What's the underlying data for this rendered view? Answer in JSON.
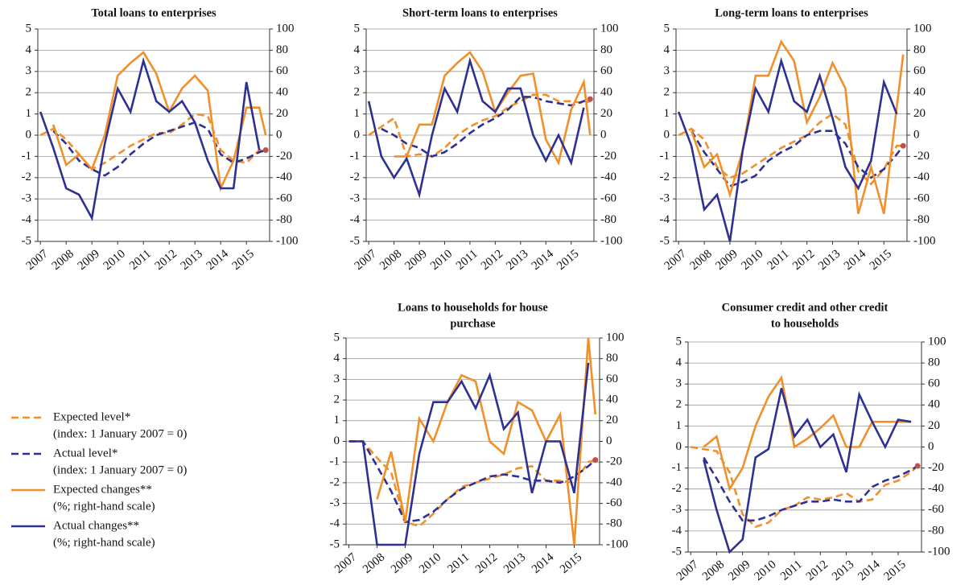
{
  "chart_data": [
    {
      "type": "line",
      "title": [
        "Total loans to enterprises"
      ],
      "x": [
        2007,
        2007.5,
        2008,
        2008.5,
        2009,
        2009.5,
        2010,
        2010.5,
        2011,
        2011.5,
        2012,
        2012.5,
        2013,
        2013.5,
        2014,
        2014.5,
        2015,
        2015.5,
        2015.75
      ],
      "xlim": [
        2006.9,
        2015.9
      ],
      "xticks": [
        2007,
        2008,
        2009,
        2010,
        2011,
        2012,
        2013,
        2014,
        2015
      ],
      "ylim": [
        -5,
        5
      ],
      "yticks": [
        -5,
        -4,
        -3,
        -2,
        -1,
        0,
        1,
        2,
        3,
        4,
        5
      ],
      "y2lim": [
        -100,
        100
      ],
      "y2ticks": [
        -100,
        -80,
        -60,
        -40,
        -20,
        0,
        20,
        40,
        60,
        80,
        100
      ],
      "grid": true,
      "series": [
        {
          "color": "#f0902a",
          "dash": true,
          "values": [
            0,
            0.3,
            -0.2,
            -0.9,
            -1.6,
            -1.3,
            -0.9,
            -0.5,
            -0.2,
            0.1,
            0.1,
            0.5,
            1.0,
            0.9,
            -0.7,
            -1.2,
            -1.3,
            -0.7,
            -0.7
          ]
        },
        {
          "color": "#2e3192",
          "dash": true,
          "end_marker": "#c0504d",
          "values": [
            null,
            0.2,
            -0.4,
            -1.2,
            -1.6,
            -1.9,
            -1.5,
            -0.9,
            -0.4,
            0,
            0.2,
            0.4,
            0.6,
            0.3,
            -0.9,
            -1.3,
            -1.1,
            -0.8,
            -0.7
          ]
        },
        {
          "color": "#f0902a",
          "axis": "y2",
          "values": [
            null,
            10,
            -28,
            -18,
            -32,
            0,
            56,
            68,
            78,
            58,
            22,
            44,
            56,
            42,
            -50,
            -24,
            26,
            26,
            0
          ]
        },
        {
          "color": "#2e3192",
          "axis": "y2",
          "values": [
            22,
            -12,
            -50,
            -56,
            -78,
            -8,
            44,
            22,
            70,
            32,
            22,
            32,
            12,
            -24,
            -50,
            -50,
            50,
            -14,
            null
          ]
        }
      ]
    },
    {
      "type": "line",
      "title": [
        "Short-term loans to enterprises"
      ],
      "x": [
        2007,
        2007.5,
        2008,
        2008.5,
        2009,
        2009.5,
        2010,
        2010.5,
        2011,
        2011.5,
        2012,
        2012.5,
        2013,
        2013.5,
        2014,
        2014.5,
        2015,
        2015.5,
        2015.75
      ],
      "xlim": [
        2006.9,
        2015.9
      ],
      "xticks": [
        2007,
        2008,
        2009,
        2010,
        2011,
        2012,
        2013,
        2014,
        2015
      ],
      "ylim": [
        -5,
        5
      ],
      "yticks": [
        -5,
        -4,
        -3,
        -2,
        -1,
        0,
        1,
        2,
        3,
        4,
        5
      ],
      "y2lim": [
        -100,
        100
      ],
      "y2ticks": [
        -100,
        -80,
        -60,
        -40,
        -20,
        0,
        20,
        40,
        60,
        80,
        100
      ],
      "grid": true,
      "series": [
        {
          "color": "#f0902a",
          "dash": true,
          "values": [
            0,
            0.4,
            0.8,
            -1.0,
            -0.9,
            -1.0,
            -0.6,
            0,
            0.4,
            0.7,
            0.9,
            1.3,
            1.6,
            1.9,
            1.9,
            1.6,
            1.6,
            1.5,
            1.6
          ]
        },
        {
          "color": "#2e3192",
          "dash": true,
          "end_marker": "#c0504d",
          "values": [
            null,
            0.3,
            0,
            -0.4,
            -0.6,
            -1.0,
            -0.8,
            -0.4,
            0.1,
            0.5,
            0.8,
            1.2,
            1.8,
            1.8,
            1.6,
            1.5,
            1.4,
            1.6,
            1.7
          ]
        },
        {
          "color": "#f0902a",
          "axis": "y2",
          "values": [
            null,
            null,
            -20,
            -20,
            10,
            10,
            56,
            68,
            78,
            60,
            22,
            40,
            56,
            58,
            -4,
            -26,
            24,
            50,
            0
          ]
        },
        {
          "color": "#2e3192",
          "axis": "y2",
          "values": [
            32,
            -20,
            -40,
            -22,
            -56,
            0,
            44,
            22,
            70,
            32,
            22,
            44,
            44,
            0,
            -24,
            0,
            -26,
            26,
            null
          ]
        }
      ]
    },
    {
      "type": "line",
      "title": [
        "Long-term loans to enterprises"
      ],
      "x": [
        2007,
        2007.5,
        2008,
        2008.5,
        2009,
        2009.5,
        2010,
        2010.5,
        2011,
        2011.5,
        2012,
        2012.5,
        2013,
        2013.5,
        2014,
        2014.5,
        2015,
        2015.5,
        2015.75
      ],
      "xlim": [
        2006.9,
        2015.9
      ],
      "xticks": [
        2007,
        2008,
        2009,
        2010,
        2011,
        2012,
        2013,
        2014,
        2015
      ],
      "ylim": [
        -5,
        5
      ],
      "yticks": [
        -5,
        -4,
        -3,
        -2,
        -1,
        0,
        1,
        2,
        3,
        4,
        5
      ],
      "y2lim": [
        -100,
        100
      ],
      "y2ticks": [
        -100,
        -80,
        -60,
        -40,
        -20,
        0,
        20,
        40,
        60,
        80,
        100
      ],
      "grid": true,
      "series": [
        {
          "color": "#f0902a",
          "dash": true,
          "values": [
            0,
            0.3,
            -0.2,
            -1.5,
            -2.0,
            -1.8,
            -1.4,
            -1.0,
            -0.6,
            -0.3,
            0,
            0.6,
            1.0,
            0.5,
            -1.7,
            -2.3,
            -1.6,
            -0.5,
            -0.5
          ]
        },
        {
          "color": "#2e3192",
          "dash": true,
          "end_marker": "#c0504d",
          "values": [
            null,
            0.2,
            -0.8,
            -1.6,
            -2.4,
            -2.2,
            -1.9,
            -1.2,
            -0.8,
            -0.5,
            0,
            0.2,
            0.2,
            -0.4,
            -1.5,
            -2.0,
            -1.6,
            -0.9,
            -0.5
          ]
        },
        {
          "color": "#f0902a",
          "axis": "y2",
          "values": [
            null,
            4,
            -30,
            -18,
            -56,
            -14,
            56,
            56,
            88,
            70,
            12,
            36,
            68,
            44,
            -74,
            -30,
            -74,
            26,
            76
          ]
        },
        {
          "color": "#2e3192",
          "axis": "y2",
          "values": [
            22,
            -10,
            -70,
            -56,
            -100,
            -14,
            44,
            22,
            70,
            32,
            22,
            56,
            16,
            -30,
            -50,
            -24,
            50,
            20,
            null
          ]
        }
      ]
    },
    {
      "type": "line",
      "title": [
        "Loans to households for house",
        "purchase"
      ],
      "x": [
        2007,
        2007.5,
        2008,
        2008.5,
        2009,
        2009.5,
        2010,
        2010.5,
        2011,
        2011.5,
        2012,
        2012.5,
        2013,
        2013.5,
        2014,
        2014.5,
        2015,
        2015.5,
        2015.75
      ],
      "xlim": [
        2006.9,
        2015.9
      ],
      "xticks": [
        2007,
        2008,
        2009,
        2010,
        2011,
        2012,
        2013,
        2014,
        2015
      ],
      "ylim": [
        -5,
        5
      ],
      "yticks": [
        -5,
        -4,
        -3,
        -2,
        -1,
        0,
        1,
        2,
        3,
        4,
        5
      ],
      "y2lim": [
        -100,
        100
      ],
      "y2ticks": [
        -100,
        -80,
        -60,
        -40,
        -20,
        0,
        20,
        40,
        60,
        80,
        100
      ],
      "grid": true,
      "series": [
        {
          "color": "#f0902a",
          "dash": true,
          "values": [
            0,
            0,
            -0.8,
            -1.5,
            -3.9,
            -4.1,
            -3.5,
            -2.8,
            -2.2,
            -2.0,
            -1.8,
            -1.6,
            -1.3,
            -1.2,
            -1.9,
            -1.9,
            -2.0,
            -1.0,
            -0.9
          ]
        },
        {
          "color": "#2e3192",
          "dash": true,
          "end_marker": "#c0504d",
          "values": [
            0,
            0,
            -1.2,
            -2.4,
            -3.9,
            -3.8,
            -3.4,
            -2.8,
            -2.3,
            -2.0,
            -1.7,
            -1.6,
            -1.7,
            -1.9,
            -1.9,
            -2.0,
            -1.7,
            -1.2,
            -0.9
          ]
        },
        {
          "color": "#f0902a",
          "axis": "y2",
          "values": [
            null,
            null,
            -56,
            -10,
            -78,
            22,
            0,
            38,
            64,
            58,
            0,
            -12,
            38,
            30,
            0,
            26,
            -100,
            100,
            26
          ]
        },
        {
          "color": "#2e3192",
          "axis": "y2",
          "values": [
            0,
            0,
            -100,
            -100,
            -100,
            -12,
            38,
            38,
            58,
            32,
            64,
            12,
            28,
            -50,
            0,
            0,
            -50,
            76,
            null
          ]
        }
      ]
    },
    {
      "type": "line",
      "title": [
        "Consumer credit and other credit",
        "to households"
      ],
      "x": [
        2007,
        2007.5,
        2008,
        2008.5,
        2009,
        2009.5,
        2010,
        2010.5,
        2011,
        2011.5,
        2012,
        2012.5,
        2013,
        2013.5,
        2014,
        2014.5,
        2015,
        2015.5,
        2015.75
      ],
      "xlim": [
        2006.9,
        2015.9
      ],
      "xticks": [
        2007,
        2008,
        2009,
        2010,
        2011,
        2012,
        2013,
        2014,
        2015
      ],
      "ylim": [
        -5,
        5
      ],
      "yticks": [
        -5,
        -4,
        -3,
        -2,
        -1,
        0,
        1,
        2,
        3,
        4,
        5
      ],
      "y2lim": [
        -100,
        100
      ],
      "y2ticks": [
        -100,
        -80,
        -60,
        -40,
        -20,
        0,
        20,
        40,
        60,
        80,
        100
      ],
      "grid": true,
      "series": [
        {
          "color": "#f0902a",
          "dash": true,
          "values": [
            0,
            -0.1,
            -0.2,
            -1.2,
            -3.2,
            -3.8,
            -3.6,
            -3.0,
            -2.8,
            -2.4,
            -2.5,
            -2.4,
            -2.2,
            -2.6,
            -2.5,
            -1.8,
            -1.6,
            -1.2,
            -0.9
          ]
        },
        {
          "color": "#2e3192",
          "dash": true,
          "end_marker": "#c0504d",
          "values": [
            null,
            -0.5,
            -1.5,
            -2.6,
            -3.5,
            -3.5,
            -3.3,
            -3.0,
            -2.8,
            -2.6,
            -2.6,
            -2.5,
            -2.6,
            -2.6,
            -1.9,
            -1.6,
            -1.4,
            -1.1,
            -0.9
          ]
        },
        {
          "color": "#f0902a",
          "axis": "y2",
          "values": [
            null,
            0,
            10,
            -40,
            -20,
            20,
            48,
            66,
            0,
            8,
            18,
            30,
            0,
            0,
            24,
            24,
            24,
            24,
            null
          ]
        },
        {
          "color": "#2e3192",
          "axis": "y2",
          "values": [
            null,
            -12,
            -60,
            -100,
            -88,
            -10,
            -2,
            56,
            10,
            26,
            0,
            12,
            -24,
            50,
            24,
            0,
            26,
            24,
            null
          ]
        }
      ]
    }
  ],
  "legend": [
    {
      "name": "Expected level*",
      "note": "(index: 1 January 2007 = 0)",
      "color": "#f0902a",
      "dash": true
    },
    {
      "name": "Actual level*",
      "note": "(index: 1 January 2007 = 0)",
      "color": "#2e3192",
      "dash": true
    },
    {
      "name": "Expected changes**",
      "note": "(%; right-hand scale)",
      "color": "#f0902a",
      "dash": false
    },
    {
      "name": "Actual changes**",
      "note": "(%; right-hand scale)",
      "color": "#2e3192",
      "dash": false
    }
  ]
}
